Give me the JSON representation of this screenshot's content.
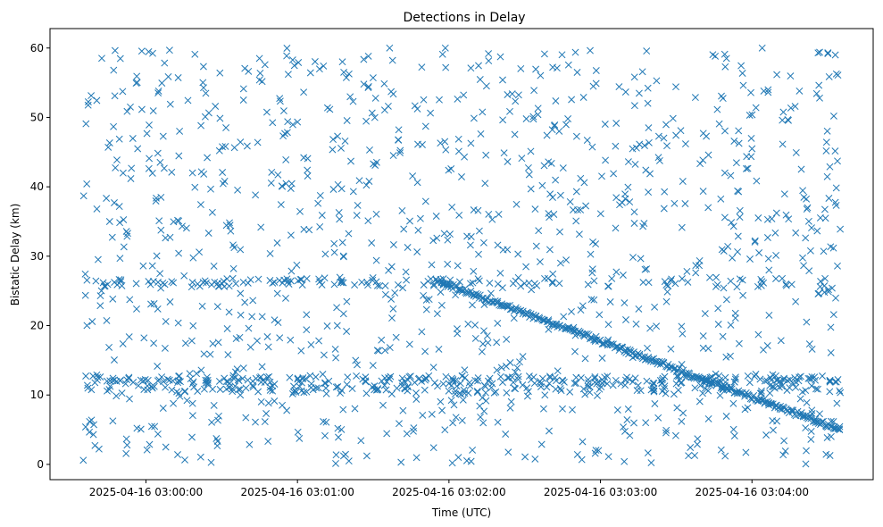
{
  "chart_data": {
    "type": "scatter",
    "title": "Detections in Delay",
    "xlabel": "Time (UTC)",
    "ylabel": "Bistatic Delay (km)",
    "marker": "x",
    "color": "#1f77b4",
    "grid": false,
    "legend": "none",
    "xlim": [
      "2025-04-16 02:59:22",
      "2025-04-16 03:04:48"
    ],
    "ylim": [
      -2.2,
      62.8
    ],
    "x_ticks": [
      "2025-04-16 03:00:00",
      "2025-04-16 03:01:00",
      "2025-04-16 03:02:00",
      "2025-04-16 03:03:00",
      "2025-04-16 03:04:00"
    ],
    "y_ticks": [
      0,
      10,
      20,
      30,
      40,
      50,
      60
    ],
    "structure": {
      "time_range": [
        "2025-04-16 02:59:35",
        "2025-04-16 03:04:35"
      ],
      "delay_range": [
        0,
        60
      ],
      "target_track": {
        "start": {
          "time": "2025-04-16 03:01:55",
          "delay": 26.5
        },
        "end": {
          "time": "2025-04-16 03:04:35",
          "delay": 5.0
        }
      },
      "clutter_bands_km": [
        12.2,
        26.2,
        10.8
      ]
    }
  }
}
